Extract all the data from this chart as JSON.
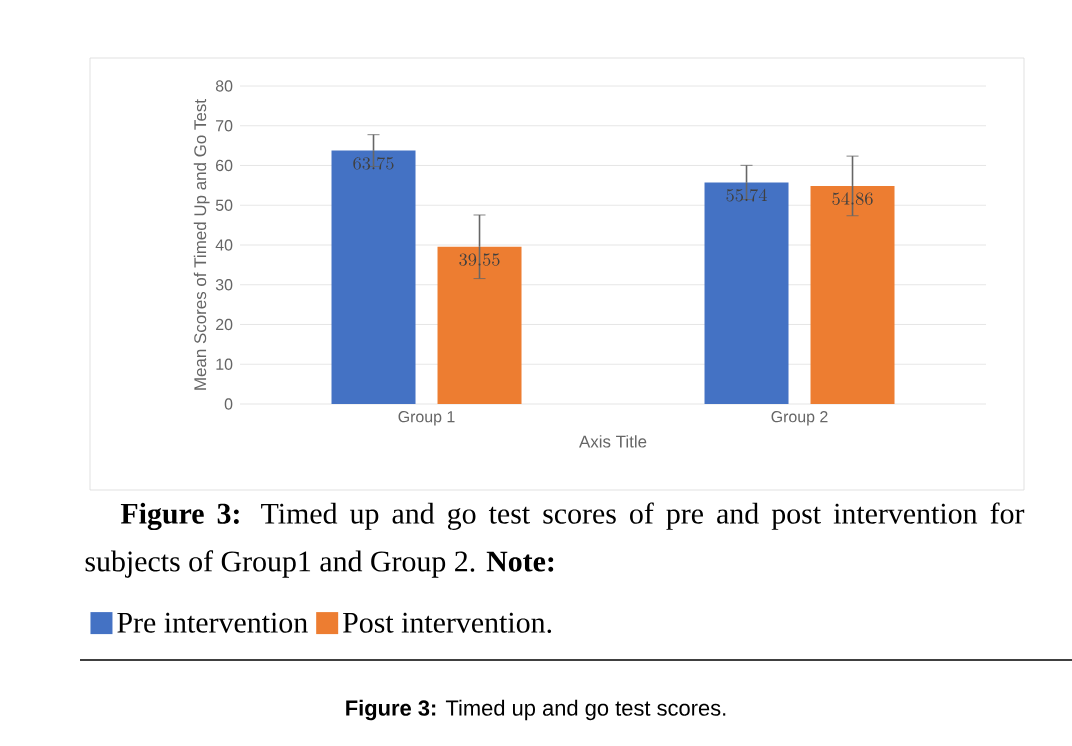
{
  "chart_data": {
    "type": "bar",
    "categories": [
      "Group 1",
      "Group 2"
    ],
    "xlabel": "Axis Title",
    "ylabel": "Mean Scores of Timed Up and Go Test",
    "series": [
      {
        "name": "Pre intervention",
        "color": "#4472c4",
        "values": [
          63.75,
          55.74
        ],
        "errors": [
          4,
          4.3
        ]
      },
      {
        "name": "Post intervention.",
        "color": "#ed7d31",
        "values": [
          39.55,
          54.86
        ],
        "errors": [
          8,
          7.5
        ]
      }
    ],
    "ylim": [
      0,
      80
    ],
    "yticks": [
      0,
      10,
      20,
      30,
      40,
      50,
      60,
      70,
      80
    ],
    "grid": "y",
    "data_labels": true,
    "legend": "bottom",
    "annotations": [
      "**Figure 3:** Timed up and go test scores of pre and post intervention for subjects of Group1 and Group 2. **Note:**",
      "**Figure 3:** Timed up and go test scores."
    ]
  }
}
